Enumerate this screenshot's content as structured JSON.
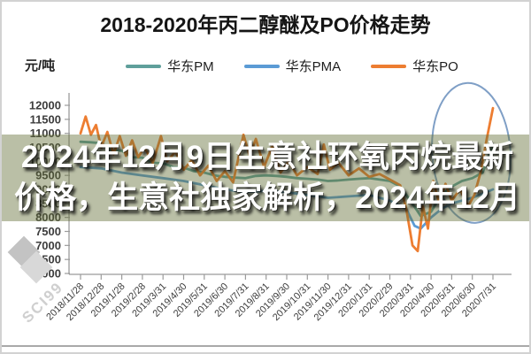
{
  "chart_data": {
    "type": "line",
    "title": "2018-2020年丙二醇醚及PO价格走势",
    "ylabel": "元/吨",
    "xlabel": "",
    "grid": false,
    "legend_position": "top",
    "ylim": [
      6000,
      12000
    ],
    "yticks": [
      6000,
      6500,
      7000,
      7500,
      8000,
      8500,
      9000,
      9500,
      10000,
      10500,
      11000,
      11500,
      12000
    ],
    "categories": [
      "2018/11/28",
      "2018/12/28",
      "2019/1/28",
      "2019/2/28",
      "2019/3/31",
      "2019/4/30",
      "2019/5/31",
      "2019/6/30",
      "2019/7/31",
      "2019/8/31",
      "2019/9/30",
      "2019/10/31",
      "2019/11/30",
      "2019/12/31",
      "2020/1/31",
      "2020/2/29",
      "2020/3/31",
      "2020/4/30",
      "2020/5/31",
      "2020/6/30",
      "2020/7/31"
    ],
    "series": [
      {
        "name": "华东PM",
        "color": "#5f9f9b",
        "points": [
          [
            0,
            10700
          ],
          [
            0.5,
            10680
          ],
          [
            1,
            10650
          ],
          [
            1.5,
            10400
          ],
          [
            2,
            10380
          ],
          [
            2.5,
            10150
          ],
          [
            3,
            10130
          ],
          [
            3.5,
            9950
          ],
          [
            4,
            9930
          ],
          [
            4.5,
            9800
          ],
          [
            5,
            9780
          ],
          [
            5.5,
            9650
          ],
          [
            6,
            9600
          ],
          [
            6.5,
            9500
          ],
          [
            7,
            9450
          ],
          [
            7.5,
            9420
          ],
          [
            8,
            9400
          ],
          [
            8.5,
            9480
          ],
          [
            9,
            9500
          ],
          [
            9.5,
            9480
          ],
          [
            10,
            9450
          ],
          [
            10.5,
            9400
          ],
          [
            11,
            9380
          ],
          [
            11.5,
            9350
          ],
          [
            12,
            9300
          ],
          [
            12.5,
            9320
          ],
          [
            13,
            9350
          ],
          [
            13.5,
            9380
          ],
          [
            14,
            9400
          ],
          [
            14.5,
            9350
          ],
          [
            15,
            9300
          ],
          [
            15.5,
            9100
          ],
          [
            16,
            8600
          ],
          [
            16.5,
            8050
          ],
          [
            17,
            8200
          ],
          [
            17.5,
            8800
          ],
          [
            18,
            9100
          ],
          [
            18.5,
            9300
          ],
          [
            19,
            9400
          ],
          [
            19.5,
            9600
          ],
          [
            19.8,
            10200
          ],
          [
            20,
            10600
          ]
        ]
      },
      {
        "name": "华东PMA",
        "color": "#5b9bd5",
        "points": [
          [
            0,
            9800
          ],
          [
            1,
            9750
          ],
          [
            2,
            9600
          ],
          [
            3,
            9500
          ],
          [
            4,
            9400
          ],
          [
            5,
            9300
          ],
          [
            6,
            9150
          ],
          [
            7,
            9000
          ],
          [
            8,
            8900
          ],
          [
            9,
            8950
          ],
          [
            10,
            8900
          ],
          [
            11,
            8800
          ],
          [
            12,
            8700
          ],
          [
            13,
            8750
          ],
          [
            14,
            8800
          ],
          [
            15,
            8600
          ],
          [
            15.8,
            8300
          ],
          [
            16.2,
            7700
          ],
          [
            16.5,
            7600
          ],
          [
            17,
            8000
          ],
          [
            17.5,
            8300
          ],
          [
            18,
            8500
          ],
          [
            18.5,
            8600
          ],
          [
            19,
            8700
          ],
          [
            19.5,
            8850
          ],
          [
            20,
            9000
          ]
        ]
      },
      {
        "name": "华东PO",
        "color": "#ed7d31",
        "points": [
          [
            0,
            11000
          ],
          [
            0.25,
            11600
          ],
          [
            0.5,
            10950
          ],
          [
            0.75,
            11300
          ],
          [
            1,
            10500
          ],
          [
            1.3,
            11050
          ],
          [
            1.6,
            10250
          ],
          [
            1.9,
            10900
          ],
          [
            2.2,
            10200
          ],
          [
            2.5,
            10750
          ],
          [
            2.8,
            10150
          ],
          [
            3.1,
            10500
          ],
          [
            3.5,
            9950
          ],
          [
            3.9,
            10900
          ],
          [
            4.2,
            10000
          ],
          [
            4.6,
            10350
          ],
          [
            5,
            9700
          ],
          [
            5.4,
            10050
          ],
          [
            5.8,
            9500
          ],
          [
            6.2,
            9850
          ],
          [
            6.6,
            9300
          ],
          [
            7,
            9650
          ],
          [
            7.4,
            9250
          ],
          [
            7.9,
            10950
          ],
          [
            8.2,
            10200
          ],
          [
            8.5,
            10800
          ],
          [
            8.9,
            9800
          ],
          [
            9.3,
            10550
          ],
          [
            9.7,
            9600
          ],
          [
            10.1,
            10000
          ],
          [
            10.5,
            9500
          ],
          [
            11,
            9800
          ],
          [
            11.5,
            9550
          ],
          [
            11.8,
            10600
          ],
          [
            12.1,
            9700
          ],
          [
            12.5,
            9950
          ],
          [
            13,
            9500
          ],
          [
            13.5,
            9750
          ],
          [
            14,
            9450
          ],
          [
            14.5,
            9550
          ],
          [
            15,
            9350
          ],
          [
            15.5,
            9150
          ],
          [
            15.8,
            8300
          ],
          [
            16.1,
            7000
          ],
          [
            16.35,
            6800
          ],
          [
            16.6,
            8400
          ],
          [
            16.85,
            7600
          ],
          [
            17.1,
            9300
          ],
          [
            17.4,
            8500
          ],
          [
            17.7,
            9200
          ],
          [
            18,
            8600
          ],
          [
            18.4,
            9000
          ],
          [
            18.8,
            8400
          ],
          [
            19.1,
            8800
          ],
          [
            19.4,
            9600
          ],
          [
            19.7,
            10800
          ],
          [
            20,
            11900
          ]
        ]
      }
    ],
    "annotation": {
      "type": "ellipse",
      "x_index_center": 18.95,
      "value_center": 10300,
      "x_index_radius": 1.9,
      "value_radius": 2500,
      "rotate_deg": -4,
      "color": "#7f9fc6"
    }
  },
  "overlay": {
    "line1": "2024年12月9日生意社环氧丙烷最新",
    "line2": "价格，生意社独家解析，2024年12月"
  },
  "watermark": {
    "text": "SCI99"
  },
  "axis_style": {
    "line_color": "#9b9b9b",
    "tick_label_color": "#3d3d3d"
  }
}
